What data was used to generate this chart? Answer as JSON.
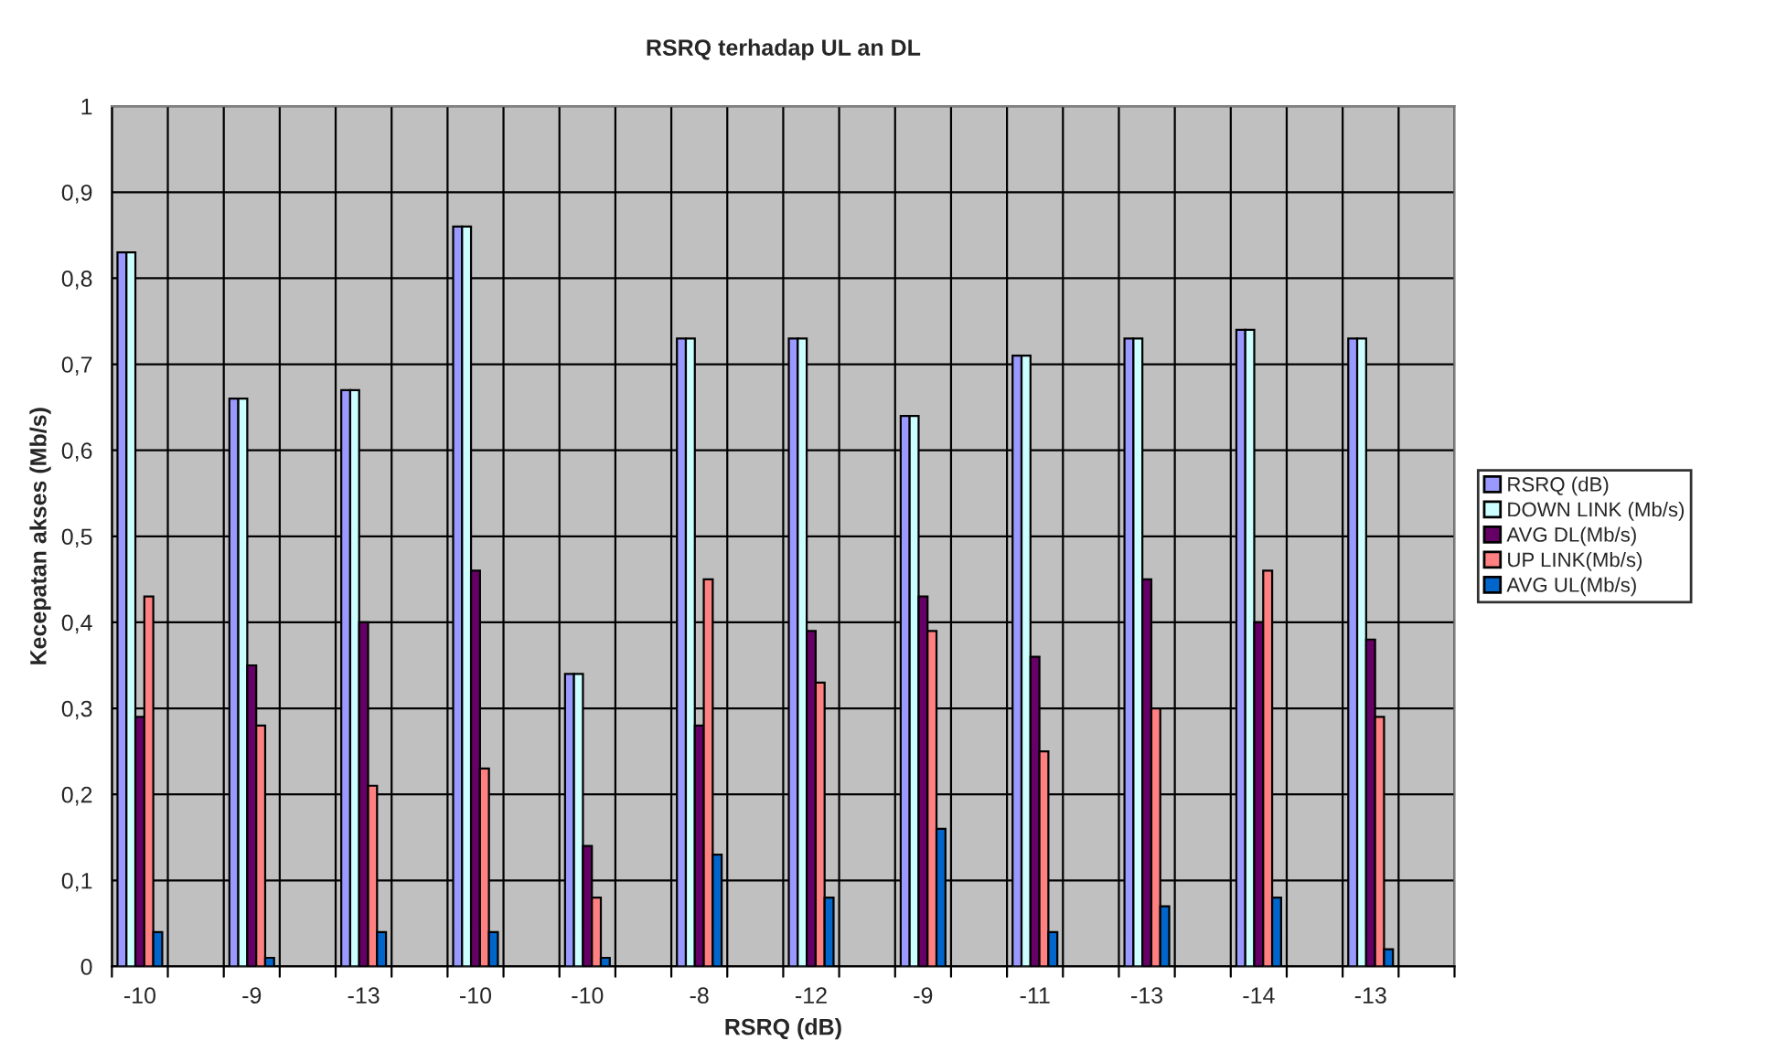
{
  "chart_data": {
    "type": "bar",
    "title": "RSRQ terhadap UL an DL",
    "xlabel": "RSRQ (dB)",
    "ylabel": "Kecepatan akses (Mb/s)",
    "categories": [
      "-10",
      null,
      "-9",
      null,
      "-13",
      null,
      "-10",
      null,
      "-10",
      null,
      "-8",
      null,
      "-12",
      null,
      "-9",
      null,
      "-11",
      null,
      "-13",
      null,
      "-14",
      null,
      "-13",
      null
    ],
    "series": [
      {
        "name": "RSRQ (dB)",
        "color": "#9999ff",
        "values": [
          0.83,
          null,
          0.66,
          null,
          0.67,
          null,
          0.86,
          null,
          0.34,
          null,
          0.73,
          null,
          0.73,
          null,
          0.64,
          null,
          0.71,
          null,
          0.73,
          null,
          0.74,
          null,
          0.73,
          null
        ]
      },
      {
        "name": "DOWN LINK (Mb/s)",
        "color": "#ccffff",
        "values": [
          0.83,
          null,
          0.66,
          null,
          0.67,
          null,
          0.86,
          null,
          0.34,
          null,
          0.73,
          null,
          0.73,
          null,
          0.64,
          null,
          0.71,
          null,
          0.73,
          null,
          0.74,
          null,
          0.73,
          null
        ]
      },
      {
        "name": "AVG DL(Mb/s)",
        "color": "#660066",
        "values": [
          0.29,
          null,
          0.35,
          null,
          0.4,
          null,
          0.46,
          null,
          0.14,
          null,
          0.28,
          null,
          0.39,
          null,
          0.43,
          null,
          0.36,
          null,
          0.45,
          null,
          0.4,
          null,
          0.38,
          null
        ]
      },
      {
        "name": "UP LINK(Mb/s)",
        "color": "#ff8080",
        "values": [
          0.43,
          null,
          0.28,
          null,
          0.21,
          null,
          0.23,
          null,
          0.08,
          null,
          0.45,
          null,
          0.33,
          null,
          0.39,
          null,
          0.25,
          null,
          0.3,
          null,
          0.46,
          null,
          0.29,
          null
        ]
      },
      {
        "name": "AVG UL(Mb/s)",
        "color": "#0066cc",
        "values": [
          0.04,
          null,
          0.01,
          null,
          0.04,
          null,
          0.04,
          null,
          0.01,
          null,
          0.13,
          null,
          0.08,
          null,
          0.16,
          null,
          0.04,
          null,
          0.07,
          null,
          0.08,
          null,
          0.02,
          null
        ]
      }
    ],
    "ylim": [
      0,
      1
    ],
    "yticks": [
      0,
      {
        "value": 0.1,
        "label": "0,1"
      },
      {
        "value": 0.2,
        "label": "0,2"
      },
      {
        "value": 0.3,
        "label": "0,3"
      },
      {
        "value": 0.4,
        "label": "0,4"
      },
      {
        "value": 0.5,
        "label": "0,5"
      },
      {
        "value": 0.6,
        "label": "0,6"
      },
      {
        "value": 0.7,
        "label": "0,7"
      },
      {
        "value": 0.8,
        "label": "0,8"
      },
      {
        "value": 0.9,
        "label": "0,9"
      },
      1
    ],
    "grid": true,
    "legend": "right"
  }
}
